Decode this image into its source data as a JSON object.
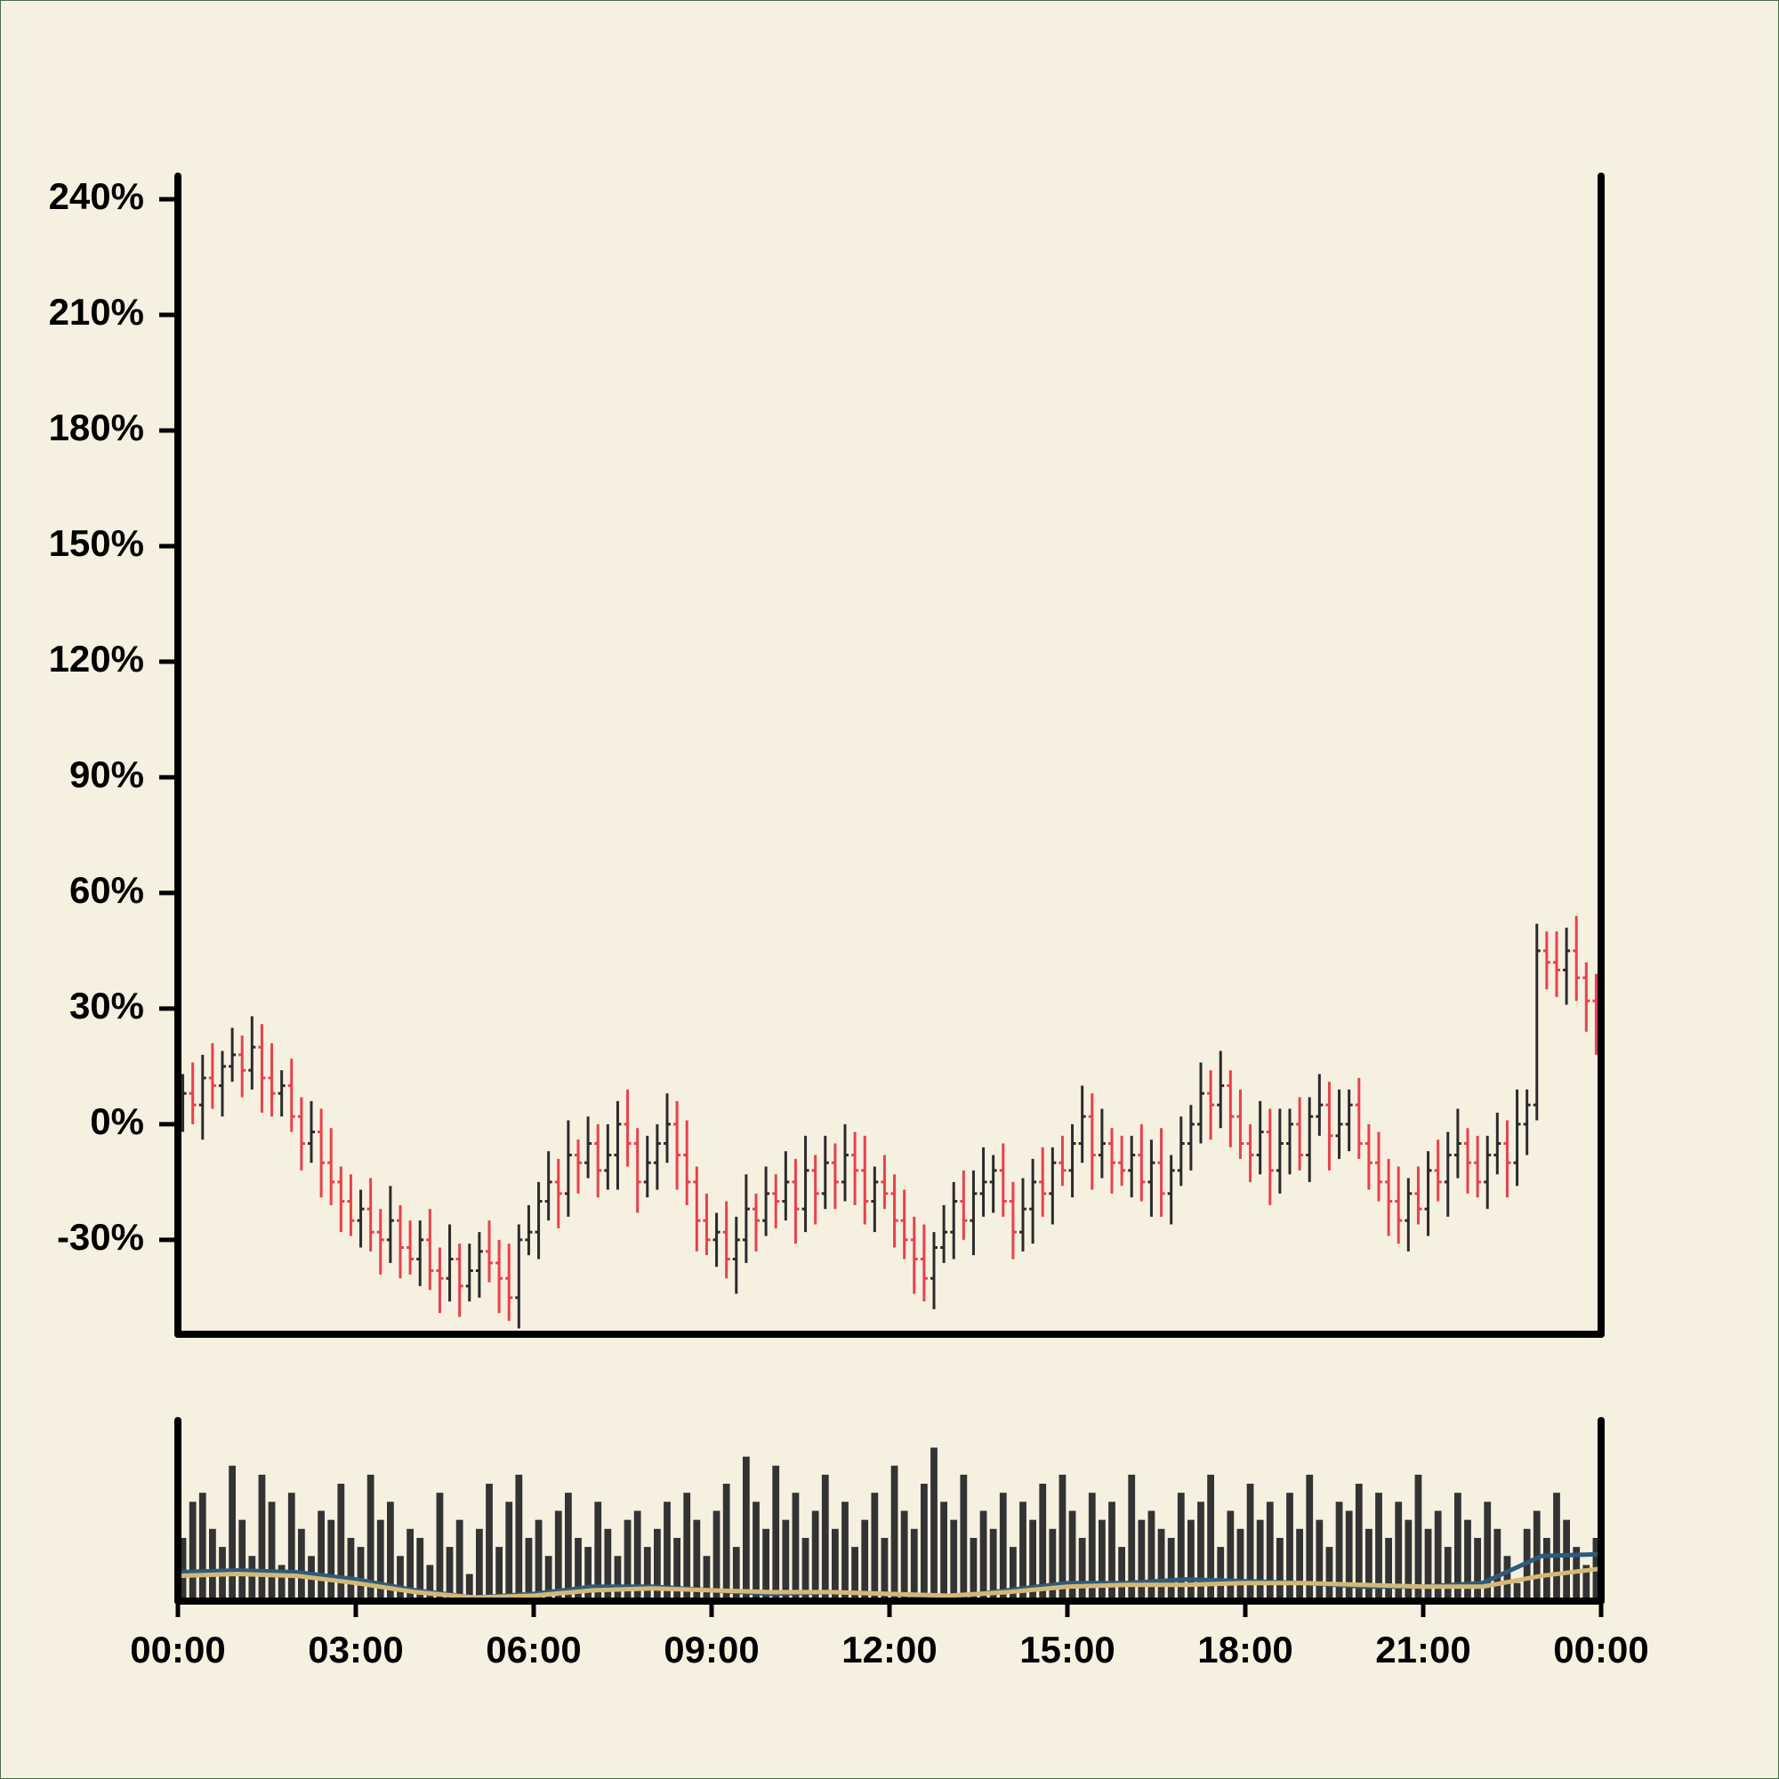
{
  "chart_data": [
    {
      "type": "ohlc",
      "x": [
        5,
        15,
        25,
        35,
        45,
        55,
        65,
        75,
        85,
        95,
        105,
        115,
        125,
        135,
        145,
        155,
        165,
        175,
        185,
        195,
        205,
        215,
        225,
        235,
        245,
        255,
        265,
        275,
        285,
        295,
        305,
        315,
        325,
        335,
        345,
        355,
        365,
        375,
        385,
        395,
        405,
        415,
        425,
        435,
        445,
        455,
        465,
        475,
        485,
        495,
        505,
        515,
        525,
        535,
        545,
        555,
        565,
        575,
        585,
        595,
        605,
        615,
        625,
        635,
        645,
        655,
        665,
        675,
        685,
        695,
        705,
        715,
        725,
        735,
        745,
        755,
        765,
        775,
        785,
        795,
        805,
        815,
        825,
        835,
        845,
        855,
        865,
        875,
        885,
        895,
        905,
        915,
        925,
        935,
        945,
        955,
        965,
        975,
        985,
        995,
        1005,
        1015,
        1025,
        1035,
        1045,
        1055,
        1065,
        1075,
        1085,
        1095,
        1105,
        1115,
        1125,
        1135,
        1145,
        1155,
        1165,
        1175,
        1185,
        1195,
        1205,
        1215,
        1225,
        1235,
        1245,
        1255,
        1265,
        1275,
        1285,
        1295,
        1305,
        1315,
        1325,
        1335,
        1345,
        1355,
        1365,
        1375,
        1385,
        1395,
        1405,
        1415,
        1425,
        1435
      ],
      "open": [
        5,
        8,
        5,
        12,
        10,
        15,
        18,
        14,
        20,
        12,
        8,
        10,
        2,
        -5,
        -2,
        -10,
        -15,
        -20,
        -25,
        -22,
        -28,
        -30,
        -25,
        -32,
        -35,
        -30,
        -38,
        -40,
        -35,
        -42,
        -38,
        -33,
        -36,
        -40,
        -45,
        -30,
        -28,
        -20,
        -15,
        -18,
        -8,
        -10,
        -5,
        -12,
        -8,
        0,
        -5,
        -15,
        -10,
        -5,
        0,
        -8,
        -15,
        -25,
        -30,
        -28,
        -35,
        -30,
        -22,
        -25,
        -18,
        -20,
        -15,
        -22,
        -12,
        -18,
        -10,
        -15,
        -8,
        -12,
        -20,
        -15,
        -18,
        -25,
        -30,
        -35,
        -40,
        -32,
        -28,
        -20,
        -25,
        -18,
        -15,
        -12,
        -20,
        -28,
        -22,
        -15,
        -18,
        -10,
        -12,
        -5,
        2,
        -8,
        -5,
        -10,
        -12,
        -8,
        -15,
        -10,
        -18,
        -12,
        -5,
        0,
        8,
        5,
        10,
        2,
        -5,
        -8,
        -2,
        -12,
        -5,
        0,
        -8,
        2,
        5,
        -3,
        0,
        5,
        -5,
        -10,
        -15,
        -20,
        -25,
        -18,
        -22,
        -12,
        -15,
        -8,
        -5,
        -10,
        -15,
        -8,
        -5,
        -10,
        0,
        5,
        45,
        42,
        40,
        45,
        38,
        32
      ],
      "high": [
        13,
        16,
        18,
        21,
        19,
        25,
        23,
        28,
        26,
        21,
        14,
        17,
        7,
        6,
        4,
        -1,
        -11,
        -13,
        -17,
        -14,
        -22,
        -16,
        -21,
        -25,
        -25,
        -22,
        -32,
        -26,
        -31,
        -31,
        -28,
        -25,
        -30,
        -31,
        -26,
        -21,
        -15,
        -7,
        -9,
        1,
        -4,
        2,
        0,
        0,
        6,
        9,
        -1,
        -3,
        0,
        8,
        6,
        1,
        -11,
        -18,
        -23,
        -20,
        -24,
        -13,
        -18,
        -11,
        -13,
        -7,
        -9,
        -3,
        -8,
        -3,
        -5,
        0,
        -2,
        -3,
        -11,
        -8,
        -13,
        -17,
        -24,
        -26,
        -28,
        -21,
        -15,
        -12,
        -12,
        -6,
        -8,
        -5,
        -15,
        -14,
        -9,
        -6,
        -6,
        -3,
        0,
        10,
        8,
        4,
        -1,
        -3,
        -3,
        0,
        -4,
        -1,
        -8,
        2,
        5,
        16,
        14,
        19,
        14,
        9,
        0,
        6,
        4,
        4,
        4,
        7,
        7,
        13,
        11,
        9,
        9,
        12,
        0,
        -2,
        -9,
        -11,
        -14,
        -11,
        -7,
        -4,
        -2,
        4,
        -1,
        -3,
        -3,
        3,
        1,
        9,
        9,
        52,
        50,
        50,
        51,
        54,
        42,
        39
      ],
      "low": [
        -2,
        0,
        -4,
        4,
        2,
        11,
        7,
        9,
        3,
        2,
        2,
        -2,
        -12,
        -10,
        -19,
        -21,
        -28,
        -29,
        -32,
        -33,
        -39,
        -36,
        -40,
        -39,
        -42,
        -43,
        -49,
        -46,
        -50,
        -46,
        -45,
        -41,
        -49,
        -51,
        -53,
        -34,
        -35,
        -25,
        -27,
        -24,
        -18,
        -14,
        -19,
        -17,
        -17,
        -11,
        -23,
        -19,
        -17,
        -10,
        -17,
        -21,
        -33,
        -34,
        -37,
        -40,
        -44,
        -36,
        -33,
        -29,
        -27,
        -25,
        -31,
        -28,
        -26,
        -22,
        -22,
        -20,
        -21,
        -26,
        -28,
        -22,
        -32,
        -35,
        -44,
        -46,
        -48,
        -36,
        -35,
        -30,
        -34,
        -24,
        -23,
        -24,
        -35,
        -33,
        -31,
        -24,
        -26,
        -16,
        -19,
        -10,
        -17,
        -14,
        -18,
        -16,
        -19,
        -20,
        -24,
        -24,
        -26,
        -16,
        -12,
        -5,
        -4,
        -1,
        -6,
        -9,
        -15,
        -13,
        -21,
        -18,
        -13,
        -12,
        -15,
        -3,
        -12,
        -9,
        -7,
        -9,
        -17,
        -20,
        -29,
        -31,
        -33,
        -26,
        -29,
        -20,
        -24,
        -14,
        -18,
        -19,
        -22,
        -13,
        -19,
        -16,
        -8,
        1,
        35,
        33,
        31,
        32,
        24,
        18
      ],
      "close": [
        8,
        5,
        12,
        10,
        15,
        18,
        14,
        20,
        12,
        8,
        10,
        2,
        -5,
        -2,
        -10,
        -15,
        -20,
        -25,
        -22,
        -28,
        -30,
        -25,
        -32,
        -35,
        -30,
        -38,
        -40,
        -35,
        -42,
        -38,
        -33,
        -36,
        -40,
        -45,
        -30,
        -28,
        -20,
        -15,
        -18,
        -8,
        -10,
        -5,
        -12,
        -8,
        0,
        -5,
        -15,
        -10,
        -5,
        0,
        -8,
        -15,
        -25,
        -30,
        -28,
        -35,
        -30,
        -22,
        -25,
        -18,
        -20,
        -15,
        -22,
        -12,
        -18,
        -10,
        -15,
        -8,
        -12,
        -20,
        -15,
        -18,
        -25,
        -30,
        -35,
        -40,
        -32,
        -28,
        -20,
        -25,
        -18,
        -15,
        -12,
        -20,
        -28,
        -22,
        -15,
        -18,
        -10,
        -12,
        -5,
        2,
        -8,
        -5,
        -10,
        -12,
        -8,
        -15,
        -10,
        -18,
        -12,
        -5,
        0,
        8,
        5,
        10,
        2,
        -5,
        -8,
        -2,
        -12,
        -5,
        0,
        -8,
        2,
        5,
        -3,
        0,
        5,
        -5,
        -10,
        -15,
        -20,
        -25,
        -18,
        -22,
        -12,
        -15,
        -8,
        -5,
        -10,
        -15,
        -8,
        -5,
        -10,
        0,
        5,
        45,
        42,
        40,
        45,
        38,
        32,
        22
      ],
      "up_color": "#2b2b2b",
      "down_color": "#e8414c",
      "xlim": [
        0,
        1440
      ],
      "ylim": [
        -54.5,
        246
      ],
      "yticks": [
        {
          "value": -30,
          "label": "-30%"
        },
        {
          "value": 0,
          "label": "0%"
        },
        {
          "value": 30,
          "label": "30%"
        },
        {
          "value": 60,
          "label": "60%"
        },
        {
          "value": 90,
          "label": "90%"
        },
        {
          "value": 120,
          "label": "120%"
        },
        {
          "value": 150,
          "label": "150%"
        },
        {
          "value": 180,
          "label": "180%"
        },
        {
          "value": 210,
          "label": "210%"
        },
        {
          "value": 240,
          "label": "240%"
        }
      ]
    },
    {
      "type": "volume",
      "x": [
        5,
        15,
        25,
        35,
        45,
        55,
        65,
        75,
        85,
        95,
        105,
        115,
        125,
        135,
        145,
        155,
        165,
        175,
        185,
        195,
        205,
        215,
        225,
        235,
        245,
        255,
        265,
        275,
        285,
        295,
        305,
        315,
        325,
        335,
        345,
        355,
        365,
        375,
        385,
        395,
        405,
        415,
        425,
        435,
        445,
        455,
        465,
        475,
        485,
        495,
        505,
        515,
        525,
        535,
        545,
        555,
        565,
        575,
        585,
        595,
        605,
        615,
        625,
        635,
        645,
        655,
        665,
        675,
        685,
        695,
        705,
        715,
        725,
        735,
        745,
        755,
        765,
        775,
        785,
        795,
        805,
        815,
        825,
        835,
        845,
        855,
        865,
        875,
        885,
        895,
        905,
        915,
        925,
        935,
        945,
        955,
        965,
        975,
        985,
        995,
        1005,
        1015,
        1025,
        1035,
        1045,
        1055,
        1065,
        1075,
        1085,
        1095,
        1105,
        1115,
        1125,
        1135,
        1145,
        1155,
        1165,
        1175,
        1185,
        1195,
        1205,
        1215,
        1225,
        1235,
        1245,
        1255,
        1265,
        1275,
        1285,
        1295,
        1305,
        1315,
        1325,
        1335,
        1345,
        1355,
        1365,
        1375,
        1385,
        1395,
        1405,
        1415,
        1425,
        1435
      ],
      "values": [
        35,
        55,
        60,
        40,
        30,
        75,
        45,
        25,
        70,
        55,
        20,
        60,
        40,
        25,
        50,
        45,
        65,
        35,
        30,
        70,
        45,
        55,
        25,
        40,
        35,
        20,
        60,
        30,
        45,
        15,
        40,
        65,
        30,
        55,
        70,
        35,
        45,
        25,
        50,
        60,
        35,
        30,
        55,
        40,
        25,
        45,
        50,
        30,
        40,
        55,
        35,
        60,
        45,
        25,
        50,
        65,
        30,
        80,
        55,
        40,
        75,
        45,
        60,
        35,
        50,
        70,
        40,
        55,
        30,
        45,
        60,
        35,
        75,
        50,
        40,
        65,
        85,
        55,
        45,
        70,
        35,
        50,
        40,
        60,
        30,
        55,
        45,
        65,
        40,
        70,
        50,
        35,
        60,
        45,
        55,
        30,
        70,
        45,
        50,
        40,
        35,
        60,
        45,
        55,
        70,
        30,
        50,
        40,
        65,
        45,
        55,
        35,
        60,
        40,
        70,
        45,
        30,
        55,
        50,
        65,
        40,
        60,
        35,
        55,
        45,
        70,
        40,
        50,
        30,
        60,
        45,
        35,
        55,
        40,
        25,
        10,
        40,
        50,
        35,
        60,
        45,
        30,
        20,
        35
      ],
      "color": "#333333",
      "xlim": [
        0,
        1440
      ],
      "ylim": [
        0,
        100
      ],
      "xticks": [
        {
          "value": 0,
          "label": "00:00"
        },
        {
          "value": 180,
          "label": "03:00"
        },
        {
          "value": 360,
          "label": "06:00"
        },
        {
          "value": 540,
          "label": "09:00"
        },
        {
          "value": 720,
          "label": "12:00"
        },
        {
          "value": 900,
          "label": "15:00"
        },
        {
          "value": 1080,
          "label": "18:00"
        },
        {
          "value": 1260,
          "label": "21:00"
        },
        {
          "value": 1440,
          "label": "00:00"
        }
      ],
      "line_x": [
        0,
        60,
        120,
        180,
        240,
        300,
        360,
        420,
        480,
        540,
        600,
        660,
        720,
        780,
        840,
        900,
        960,
        1020,
        1080,
        1140,
        1200,
        1260,
        1320,
        1380,
        1440
      ],
      "lines": [
        {
          "color": "#2e5b7a",
          "values": [
            16,
            17,
            16,
            12,
            6,
            2,
            4,
            8,
            8,
            6,
            4,
            5,
            4,
            2,
            6,
            10,
            10,
            12,
            11,
            10,
            8,
            8,
            10,
            25,
            26
          ]
        },
        {
          "color": "#d4b878",
          "values": [
            14,
            15,
            14,
            10,
            5,
            2,
            3,
            6,
            7,
            6,
            5,
            5,
            4,
            3,
            5,
            8,
            9,
            9,
            10,
            10,
            9,
            8,
            8,
            14,
            18
          ]
        }
      ]
    }
  ]
}
